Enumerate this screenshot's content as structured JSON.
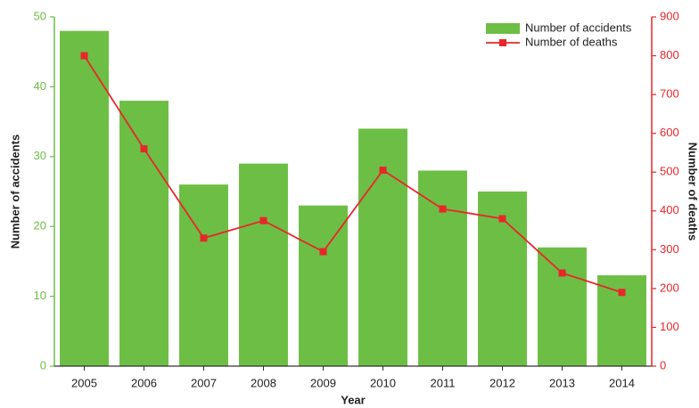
{
  "chart_data": {
    "type": "bar",
    "xlabel": "Year",
    "ylabel": "Number of accidents",
    "y2label": "Number of deaths",
    "categories": [
      "2005",
      "2006",
      "2007",
      "2008",
      "2009",
      "2010",
      "2011",
      "2012",
      "2013",
      "2014"
    ],
    "series": [
      {
        "name": "Number of accidents",
        "type": "bar",
        "color": "#6dbe45",
        "values": [
          48,
          38,
          26,
          29,
          23,
          34,
          28,
          25,
          17,
          13
        ]
      },
      {
        "name": "Number of deaths",
        "type": "line",
        "axis": "y2",
        "color": "#e8262a",
        "values": [
          800,
          560,
          330,
          375,
          295,
          505,
          405,
          380,
          240,
          190
        ]
      }
    ],
    "ylim": [
      0,
      50
    ],
    "yticks": [
      0,
      10,
      20,
      30,
      40,
      50
    ],
    "ycolor": "#6dbe45",
    "y2lim": [
      0,
      900
    ],
    "y2ticks": [
      0,
      100,
      200,
      300,
      400,
      500,
      600,
      700,
      800,
      900
    ],
    "y2color": "#e8262a",
    "grid": false,
    "legend": "upper right"
  }
}
